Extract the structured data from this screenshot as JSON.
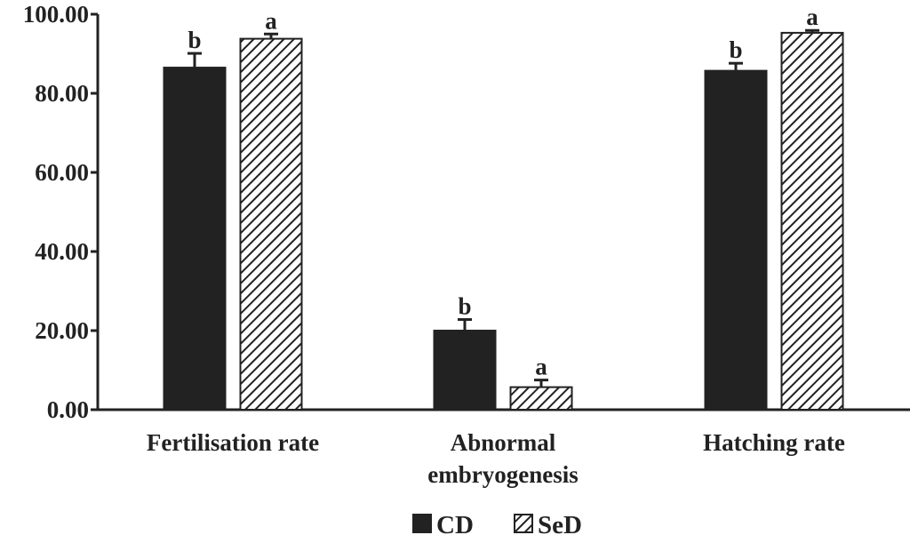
{
  "chart_data": {
    "type": "bar",
    "categories": [
      [
        "Fertilisation rate"
      ],
      [
        "Abnormal",
        "embryogenesis"
      ],
      [
        "Hatching rate"
      ]
    ],
    "series": [
      {
        "name": "CD",
        "values": [
          86.5,
          20.0,
          85.7
        ],
        "errors": [
          3.6,
          2.8,
          1.9
        ],
        "sig": [
          "b",
          "b",
          "b"
        ],
        "color": "#222222",
        "fill": "solid"
      },
      {
        "name": "SeD",
        "values": [
          93.8,
          5.7,
          95.3
        ],
        "errors": [
          1.2,
          1.8,
          0.6
        ],
        "sig": [
          "a",
          "a",
          "a"
        ],
        "color": "#222222",
        "fill": "hatched"
      }
    ],
    "yticks": [
      "0.00",
      "20.00",
      "40.00",
      "60.00",
      "80.00",
      "100.00"
    ],
    "ylim": [
      0,
      100
    ],
    "grid": false,
    "legend_position": "bottom"
  }
}
